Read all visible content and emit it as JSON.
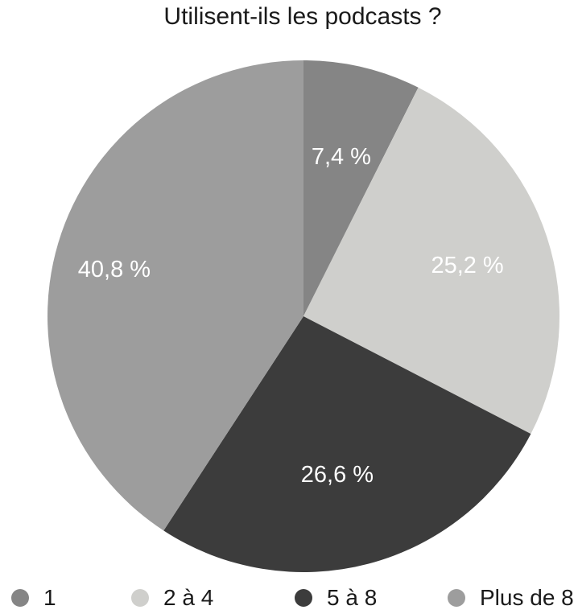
{
  "chart_data": {
    "type": "pie",
    "title": "Utilisent-ils les podcasts ?",
    "slices": [
      {
        "label": "1",
        "value": 7.4,
        "display": "7,4 %",
        "color": "#858585"
      },
      {
        "label": "2 à 4",
        "value": 25.2,
        "display": "25,2 %",
        "color": "#cfcfcc"
      },
      {
        "label": "5 à 8",
        "value": 26.6,
        "display": "26,6 %",
        "color": "#3c3c3c"
      },
      {
        "label": "Plus de 8",
        "value": 40.8,
        "display": "40,8 %",
        "color": "#9d9d9d"
      }
    ],
    "start_angle": "12 o'clock",
    "direction": "clockwise",
    "legend_position": "bottom"
  }
}
